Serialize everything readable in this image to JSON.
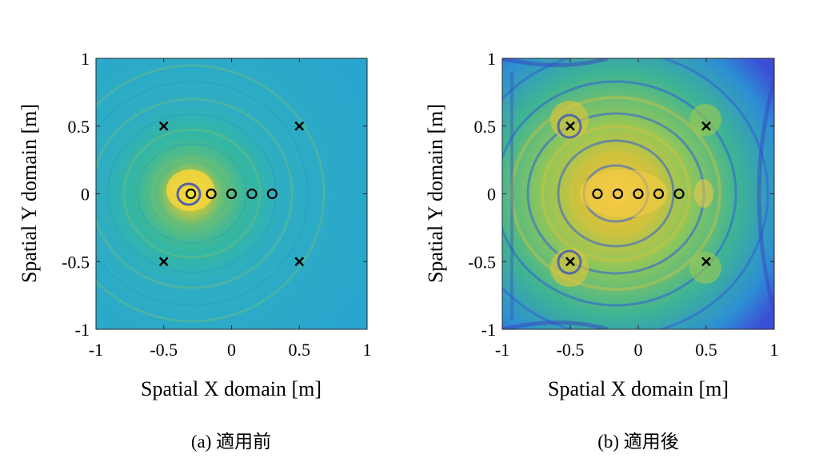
{
  "chart_data": [
    {
      "type": "heatmap",
      "caption": "(a) 適用前",
      "xlabel": "Spatial X domain [m]",
      "ylabel": "Spatial Y domain [m]",
      "xlim": [
        -1,
        1
      ],
      "ylim": [
        -1,
        1
      ],
      "xticks": [
        -1,
        -0.5,
        0,
        0.5,
        1
      ],
      "yticks": [
        -1,
        -0.5,
        0,
        0.5,
        1
      ],
      "xtick_labels": [
        "-1",
        "-0.5",
        "0",
        "0.5",
        "1"
      ],
      "ytick_labels": [
        "1",
        "0.5",
        "0",
        "-0.5",
        "-1"
      ],
      "colormap": "parula",
      "x_markers": [
        [
          -0.5,
          0.5
        ],
        [
          0.5,
          0.5
        ],
        [
          -0.5,
          -0.5
        ],
        [
          0.5,
          -0.5
        ]
      ],
      "o_markers": [
        [
          -0.3,
          0
        ],
        [
          -0.15,
          0
        ],
        [
          0,
          0
        ],
        [
          0.15,
          0
        ],
        [
          0.3,
          0
        ]
      ],
      "field_note": "focused near (-0.3, 0), weak elsewhere"
    },
    {
      "type": "heatmap",
      "caption": "(b) 適用後",
      "xlabel": "Spatial X domain [m]",
      "ylabel": "Spatial Y domain [m]",
      "xlim": [
        -1,
        1
      ],
      "ylim": [
        -1,
        1
      ],
      "xticks": [
        -1,
        -0.5,
        0,
        0.5,
        1
      ],
      "yticks": [
        -1,
        -0.5,
        0,
        0.5,
        1
      ],
      "xtick_labels": [
        "-1",
        "-0.5",
        "0",
        "0.5",
        "1"
      ],
      "ytick_labels": [
        "1",
        "0.5",
        "0",
        "-0.5",
        "-1"
      ],
      "colormap": "parula",
      "x_markers": [
        [
          -0.5,
          0.5
        ],
        [
          0.5,
          0.5
        ],
        [
          -0.5,
          -0.5
        ],
        [
          0.5,
          -0.5
        ]
      ],
      "o_markers": [
        [
          -0.3,
          0
        ],
        [
          -0.15,
          0
        ],
        [
          0,
          0
        ],
        [
          0.15,
          0
        ],
        [
          0.3,
          0
        ]
      ],
      "field_note": "strong interference pattern across full domain"
    }
  ]
}
